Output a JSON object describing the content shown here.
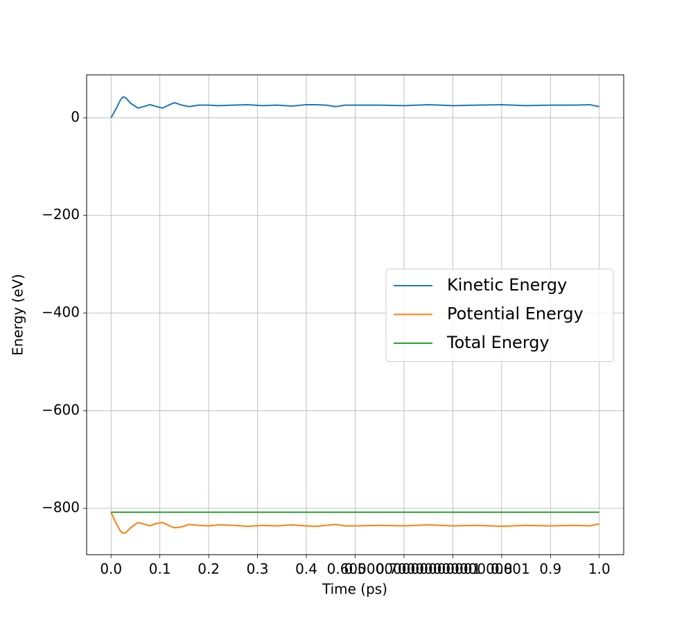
{
  "chart_data": {
    "type": "line",
    "xlabel": "Time (ps)",
    "ylabel": "Energy (eV)",
    "x": [
      0,
      0.01,
      0.02,
      0.025,
      0.03,
      0.04,
      0.055,
      0.07,
      0.08,
      0.09,
      0.105,
      0.12,
      0.13,
      0.145,
      0.16,
      0.18,
      0.2,
      0.22,
      0.25,
      0.28,
      0.31,
      0.34,
      0.37,
      0.4,
      0.42,
      0.44,
      0.46,
      0.48,
      0.5,
      0.55,
      0.6,
      0.65,
      0.7,
      0.75,
      0.8,
      0.85,
      0.9,
      0.95,
      0.98,
      1.0
    ],
    "series": [
      {
        "name": "Kinetic Energy",
        "color": "#1f77b4",
        "values": [
          0,
          18,
          38,
          43,
          41,
          30,
          20,
          24,
          27,
          24,
          20,
          27,
          31,
          26,
          23,
          26,
          26,
          25,
          26,
          27,
          25,
          26,
          24,
          27,
          27,
          26,
          23,
          26,
          26,
          26,
          25,
          27,
          25,
          26,
          27,
          25,
          26,
          26,
          27,
          23
        ]
      },
      {
        "name": "Potential Energy",
        "color": "#ff7f0e",
        "values": [
          -808,
          -830,
          -848,
          -851,
          -850,
          -840,
          -829,
          -833,
          -836,
          -832,
          -829,
          -836,
          -840,
          -838,
          -833,
          -835,
          -836,
          -834,
          -835,
          -837,
          -835,
          -836,
          -834,
          -836,
          -837,
          -835,
          -833,
          -836,
          -836,
          -835,
          -836,
          -834,
          -836,
          -835,
          -837,
          -835,
          -836,
          -835,
          -836,
          -832
        ]
      },
      {
        "name": "Total Energy",
        "color": "#2ca02c",
        "values": [
          -808,
          -808,
          -808,
          -808,
          -808,
          -808,
          -808,
          -808,
          -808,
          -808,
          -808,
          -808,
          -808,
          -808,
          -808,
          -808,
          -808,
          -808,
          -808,
          -808,
          -808,
          -808,
          -808,
          -808,
          -808,
          -808,
          -808,
          -808,
          -808,
          -808,
          -808,
          -808,
          -808,
          -808,
          -808,
          -808,
          -808,
          -808,
          -808,
          -808
        ]
      }
    ],
    "xlim": [
      -0.05,
      1.05
    ],
    "xticks": [
      {
        "value": 0,
        "label": "0.0"
      },
      0.1,
      0.2,
      0.3,
      0.4,
      0.5,
      {
        "value": 0.6,
        "label": "0.6000000000000001"
      },
      {
        "value": 0.7,
        "label": "0.7000000000000001"
      },
      0.8,
      0.9,
      {
        "value": 1,
        "label": "1.0"
      }
    ],
    "ylim": [
      -895,
      88
    ],
    "yticks": [
      {
        "value": -800,
        "label": "−800"
      },
      {
        "value": -600,
        "label": "−600"
      },
      {
        "value": -400,
        "label": "−400"
      },
      {
        "value": -200,
        "label": "−200"
      },
      0
    ],
    "grid": true,
    "legend": "center right"
  }
}
